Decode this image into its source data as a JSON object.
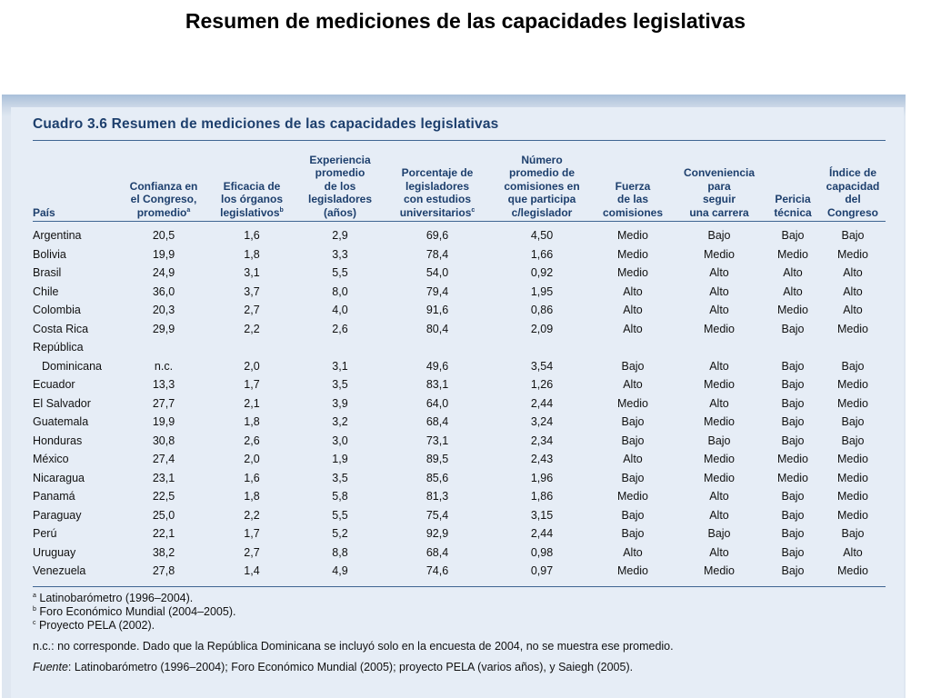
{
  "slide_title": "Resumen de mediciones de las capacidades legislativas",
  "table_caption": "Cuadro 3.6  Resumen de mediciones de las capacidades legislativas",
  "headers": [
    {
      "text": "País",
      "sup": ""
    },
    {
      "text": "Confianza en\nel Congreso,\npromedio",
      "sup": "a"
    },
    {
      "text": "Eficacia de\nlos órganos\nlegislativos",
      "sup": "b"
    },
    {
      "text": "Experiencia\npromedio\nde los\nlegisladores\n(años)",
      "sup": ""
    },
    {
      "text": "Porcentaje de\nlegisladores\ncon estudios\nuniversitarios",
      "sup": "c"
    },
    {
      "text": "Número\npromedio de\ncomisiones en\nque participa\nc/legislador",
      "sup": ""
    },
    {
      "text": "Fuerza\nde las\ncomisiones",
      "sup": ""
    },
    {
      "text": "Conveniencia\npara\nseguir\nuna carrera",
      "sup": ""
    },
    {
      "text": "Pericia\ntécnica",
      "sup": ""
    },
    {
      "text": "Índice de\ncapacidad\ndel\nCongreso",
      "sup": ""
    }
  ],
  "rows": [
    [
      "Argentina",
      "20,5",
      "1,6",
      "2,9",
      "69,6",
      "4,50",
      "Medio",
      "Bajo",
      "Bajo",
      "Bajo"
    ],
    [
      "Bolivia",
      "19,9",
      "1,8",
      "3,3",
      "78,4",
      "1,66",
      "Medio",
      "Medio",
      "Medio",
      "Medio"
    ],
    [
      "Brasil",
      "24,9",
      "3,1",
      "5,5",
      "54,0",
      "0,92",
      "Medio",
      "Alto",
      "Alto",
      "Alto"
    ],
    [
      "Chile",
      "36,0",
      "3,7",
      "8,0",
      "79,4",
      "1,95",
      "Alto",
      "Alto",
      "Alto",
      "Alto"
    ],
    [
      "Colombia",
      "20,3",
      "2,7",
      "4,0",
      "91,6",
      "0,86",
      "Alto",
      "Alto",
      "Medio",
      "Alto"
    ],
    [
      "Costa Rica",
      "29,9",
      "2,2",
      "2,6",
      "80,4",
      "2,09",
      "Alto",
      "Medio",
      "Bajo",
      "Medio"
    ],
    [
      "República",
      "",
      "",
      "",
      "",
      "",
      "",
      "",
      "",
      ""
    ],
    [
      "Dominicana",
      "n.c.",
      "2,0",
      "3,1",
      "49,6",
      "3,54",
      "Bajo",
      "Alto",
      "Bajo",
      "Bajo"
    ],
    [
      "Ecuador",
      "13,3",
      "1,7",
      "3,5",
      "83,1",
      "1,26",
      "Alto",
      "Medio",
      "Bajo",
      "Medio"
    ],
    [
      "El Salvador",
      "27,7",
      "2,1",
      "3,9",
      "64,0",
      "2,44",
      "Medio",
      "Alto",
      "Bajo",
      "Medio"
    ],
    [
      "Guatemala",
      "19,9",
      "1,8",
      "3,2",
      "68,4",
      "3,24",
      "Bajo",
      "Medio",
      "Bajo",
      "Bajo"
    ],
    [
      "Honduras",
      "30,8",
      "2,6",
      "3,0",
      "73,1",
      "2,34",
      "Bajo",
      "Bajo",
      "Bajo",
      "Bajo"
    ],
    [
      "México",
      "27,4",
      "2,0",
      "1,9",
      "89,5",
      "2,43",
      "Alto",
      "Medio",
      "Medio",
      "Medio"
    ],
    [
      "Nicaragua",
      "23,1",
      "1,6",
      "3,5",
      "85,6",
      "1,96",
      "Bajo",
      "Medio",
      "Medio",
      "Medio"
    ],
    [
      "Panamá",
      "22,5",
      "1,8",
      "5,8",
      "81,3",
      "1,86",
      "Medio",
      "Alto",
      "Bajo",
      "Medio"
    ],
    [
      "Paraguay",
      "25,0",
      "2,2",
      "5,5",
      "75,4",
      "3,15",
      "Bajo",
      "Alto",
      "Bajo",
      "Medio"
    ],
    [
      "Perú",
      "22,1",
      "1,7",
      "5,2",
      "92,9",
      "2,44",
      "Bajo",
      "Bajo",
      "Bajo",
      "Bajo"
    ],
    [
      "Uruguay",
      "38,2",
      "2,7",
      "8,8",
      "68,4",
      "0,98",
      "Alto",
      "Alto",
      "Bajo",
      "Alto"
    ],
    [
      "Venezuela",
      "27,8",
      "1,4",
      "4,9",
      "74,6",
      "0,97",
      "Medio",
      "Medio",
      "Bajo",
      "Medio"
    ]
  ],
  "footnotes": [
    {
      "mark": "a",
      "text": " Latinobarómetro (1996–2004)."
    },
    {
      "mark": "b",
      "text": " Foro Económico Mundial (2004–2005)."
    },
    {
      "mark": "c",
      "text": " Proyecto PELA (2002)."
    }
  ],
  "nc_note": "n.c.: no corresponde. Dado que la República Dominicana se incluyó solo en la encuesta de 2004, no se muestra ese promedio.",
  "source": {
    "label": "Fuente",
    "text": ": Latinobarómetro (1996–2004); Foro Económico Mundial (2005); proyecto PELA (varios años), y Saiegh (2005)."
  },
  "colors": {
    "header_text": "#1d3f6d",
    "panel_background": "#e6edf6",
    "rule": "#3f6592"
  }
}
